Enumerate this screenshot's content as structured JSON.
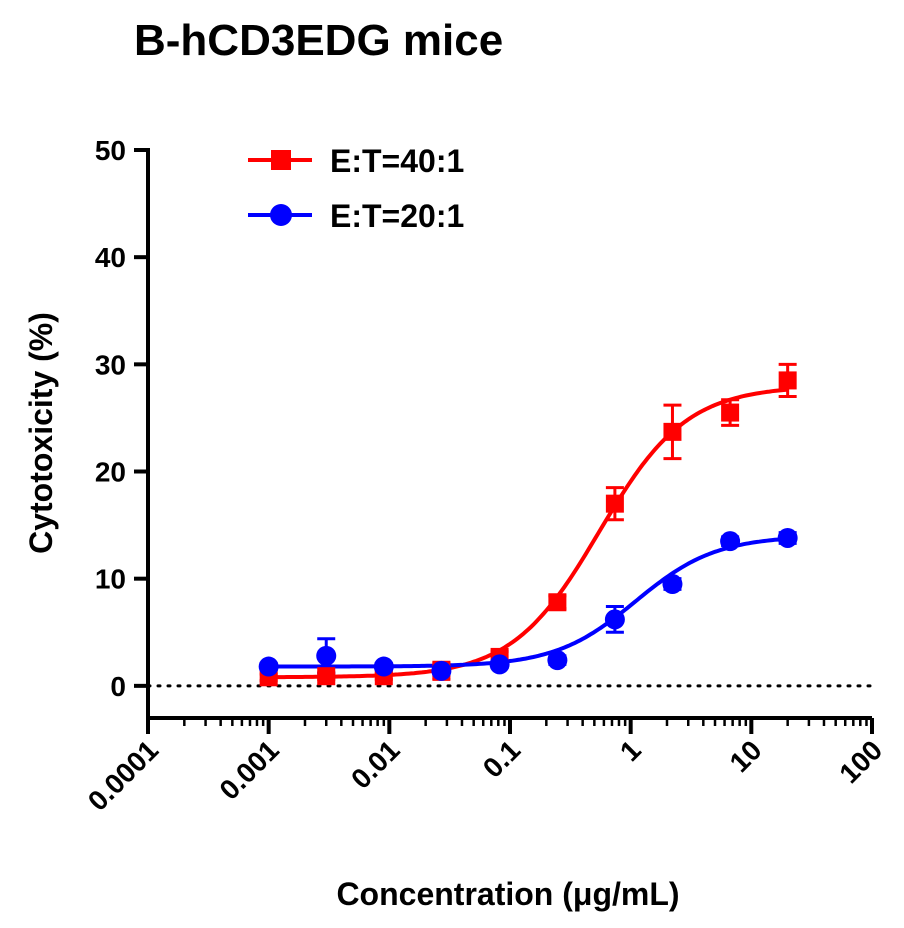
{
  "chart_data": {
    "type": "scatter",
    "title": "B-hCD3EDG mice",
    "xlabel": "Concentration (μg/mL)",
    "ylabel": "Cytotoxicity (%)",
    "x_scale": "log",
    "xlim": [
      0.0001,
      100
    ],
    "ylim": [
      -3,
      50
    ],
    "x_ticks": [
      "0.0001",
      "0.001",
      "0.01",
      "0.1",
      "1",
      "10",
      "100"
    ],
    "y_ticks": [
      "0",
      "10",
      "20",
      "30",
      "40",
      "50"
    ],
    "reference_line": {
      "y": 0,
      "style": "dotted"
    },
    "legend_position": "top-left",
    "series": [
      {
        "name": "E:T=40:1",
        "color": "#ff0000",
        "marker": "square",
        "x": [
          0.001,
          0.003,
          0.009,
          0.027,
          0.082,
          0.247,
          0.74,
          2.22,
          6.67,
          20
        ],
        "y": [
          0.8,
          0.9,
          0.9,
          1.4,
          2.7,
          7.8,
          17.0,
          23.7,
          25.5,
          28.5
        ],
        "error": [
          0.3,
          0.3,
          0.3,
          0.8,
          0.5,
          0.6,
          1.5,
          2.5,
          1.2,
          1.5
        ],
        "fit": {
          "bottom": 0.8,
          "top": 28.0,
          "ec50": 0.55,
          "hill": 1.2
        }
      },
      {
        "name": "E:T=20:1",
        "color": "#0000ff",
        "marker": "circle",
        "x": [
          0.001,
          0.003,
          0.009,
          0.027,
          0.082,
          0.247,
          0.74,
          2.22,
          6.67,
          20
        ],
        "y": [
          1.8,
          2.8,
          1.8,
          1.4,
          2.0,
          2.4,
          6.2,
          9.5,
          13.5,
          13.8
        ],
        "error": [
          0.3,
          1.6,
          0.3,
          0.4,
          0.3,
          0.4,
          1.2,
          0.5,
          0.4,
          0.5
        ],
        "fit": {
          "bottom": 1.8,
          "top": 14.0,
          "ec50": 1.1,
          "hill": 1.3
        }
      }
    ]
  }
}
